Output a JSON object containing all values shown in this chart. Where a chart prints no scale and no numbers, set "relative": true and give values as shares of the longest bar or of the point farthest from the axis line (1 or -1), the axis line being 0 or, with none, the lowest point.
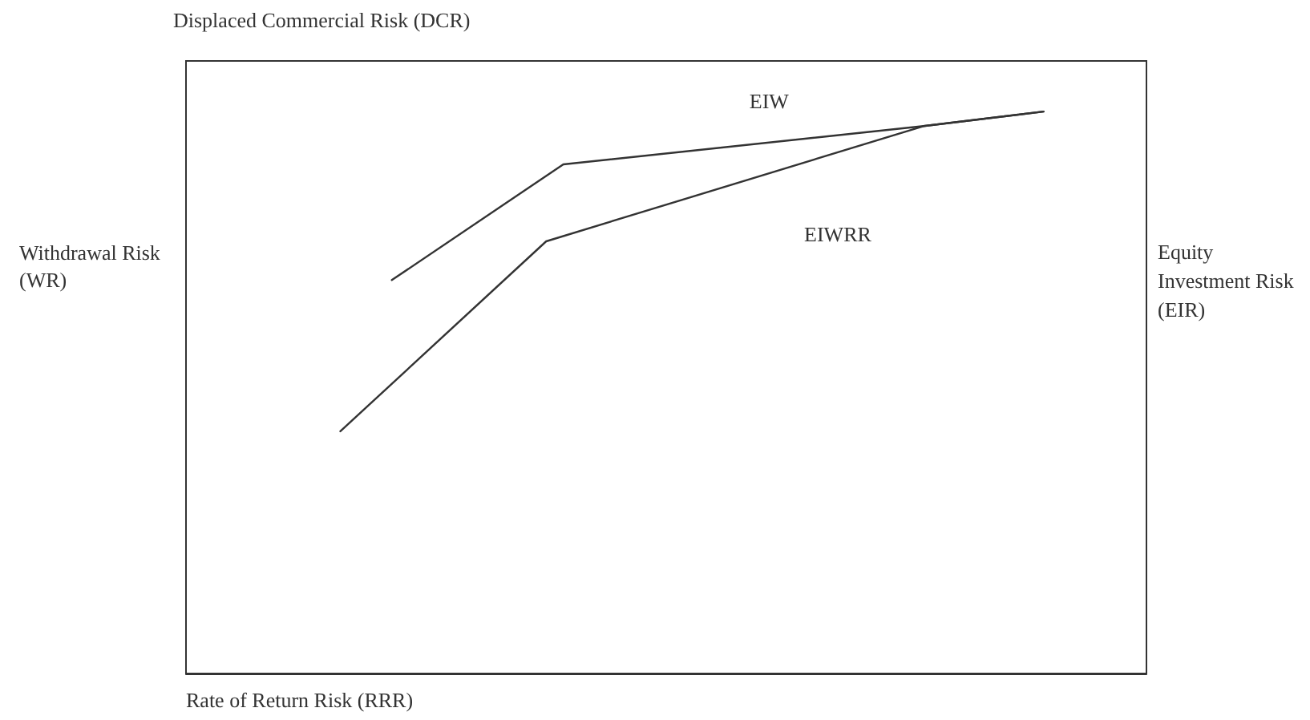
{
  "chart_data": {
    "type": "line",
    "relative": true,
    "title": "Displaced Commercial Risk (DCR)",
    "xlabel": "Rate of Return Risk (RRR)",
    "ylabel": "Withdrawal Risk (WR)",
    "y2label": "Equity Investment Risk (EIR)",
    "categories": [
      null,
      null,
      null,
      null,
      null,
      null,
      null,
      null,
      null,
      null,
      null,
      null,
      null,
      null,
      null,
      null,
      null,
      null,
      null,
      null,
      null,
      null,
      null,
      null,
      null,
      null,
      null,
      null,
      null,
      null,
      null,
      null,
      null,
      null,
      null,
      null,
      null,
      null,
      null,
      null,
      null,
      null,
      null,
      null,
      null,
      null,
      null,
      null,
      null,
      null,
      null,
      null,
      null,
      null,
      null,
      null,
      null
    ],
    "grid": false,
    "legend": false,
    "marker": "none",
    "line_style": "solid",
    "series": [
      {
        "name": "EIW",
        "color": "#333333",
        "values": [
          null,
          null,
          null,
          null,
          null,
          null,
          null,
          null,
          null,
          null,
          null,
          null,
          0.7,
          null,
          null,
          null,
          null,
          null,
          null,
          null,
          null,
          null,
          0.906,
          null,
          null,
          null,
          null,
          null,
          null,
          null,
          null,
          null,
          null,
          null,
          null,
          null,
          null,
          null,
          null,
          null,
          null,
          null,
          null,
          0.974,
          null,
          null,
          null,
          null,
          null,
          null,
          1,
          null,
          null,
          null,
          null,
          null,
          null
        ]
      },
      {
        "name": "EIWRR",
        "color": "#333333",
        "values": [
          null,
          null,
          null,
          null,
          null,
          null,
          null,
          null,
          null,
          0.431,
          null,
          null,
          null,
          null,
          null,
          null,
          null,
          null,
          null,
          null,
          null,
          0.769,
          null,
          null,
          null,
          null,
          null,
          null,
          null,
          null,
          null,
          null,
          null,
          null,
          null,
          null,
          null,
          null,
          null,
          null,
          null,
          null,
          null,
          0.974,
          null,
          null,
          null,
          null,
          null,
          null,
          1,
          null,
          null,
          null,
          null,
          null,
          null
        ]
      }
    ]
  }
}
